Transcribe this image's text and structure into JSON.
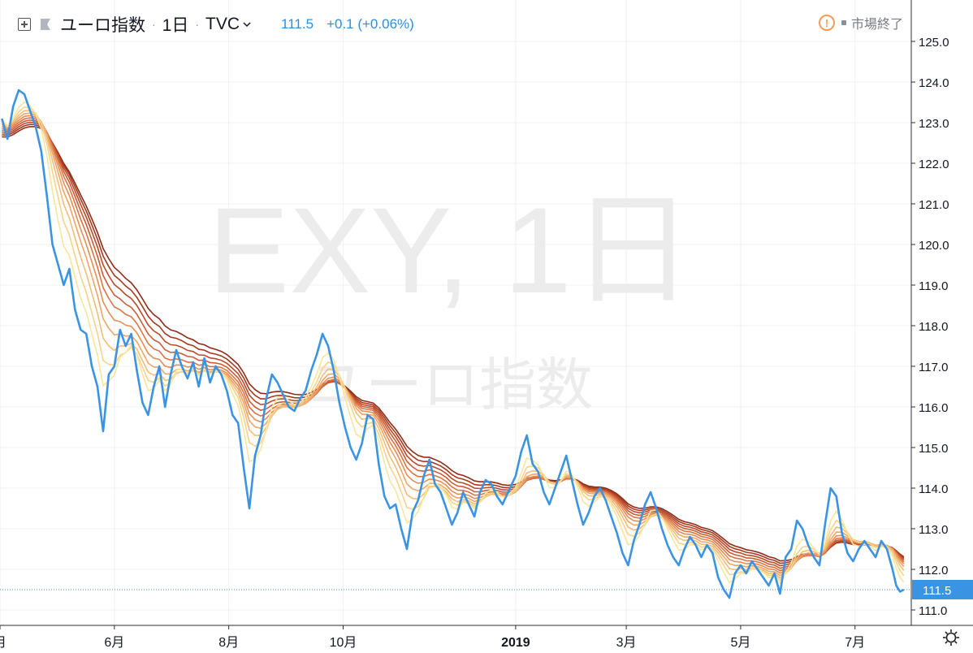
{
  "header": {
    "symbol_name": "ユーロ指数",
    "separator": "·",
    "interval": "1日",
    "exchange": "TVC",
    "last_price": "111.5",
    "change": "+0.1 (+0.06%)",
    "market_status": "市場終了"
  },
  "watermark": {
    "line1": "EXY, 1日",
    "line2": "ユーロ指数"
  },
  "colors": {
    "price_line": "#3a93e3",
    "ribbon": [
      "#8e2c17",
      "#a43a1f",
      "#b94b2a",
      "#cc5c36",
      "#db7445",
      "#e68d55",
      "#eea567",
      "#f3bd78",
      "#f7d38a",
      "#fae59c"
    ],
    "accent": "#f49a55"
  },
  "chart_data": {
    "type": "line",
    "y_ticks": [
      "125.0",
      "124.0",
      "123.0",
      "122.0",
      "121.0",
      "120.0",
      "119.0",
      "118.0",
      "117.0",
      "116.0",
      "115.0",
      "114.0",
      "113.0",
      "112.0",
      "111.0"
    ],
    "ylim": [
      110.7,
      125.3
    ],
    "x_ticks": [
      {
        "label": "月",
        "date": "2018-04-01",
        "bold": false
      },
      {
        "label": "6月",
        "date": "2018-06-01",
        "bold": false
      },
      {
        "label": "8月",
        "date": "2018-08-01",
        "bold": false
      },
      {
        "label": "10月",
        "date": "2018-10-01",
        "bold": false
      },
      {
        "label": "2019",
        "date": "2019-01-01",
        "bold": true
      },
      {
        "label": "3月",
        "date": "2019-03-01",
        "bold": false
      },
      {
        "label": "5月",
        "date": "2019-05-01",
        "bold": false
      },
      {
        "label": "7月",
        "date": "2019-07-01",
        "bold": false
      }
    ],
    "xlim": [
      "2018-04-01",
      "2019-07-31"
    ],
    "last_value_label": "111.5",
    "series": [
      {
        "values": [
          [
            "2018-04-02",
            123.1
          ],
          [
            "2018-04-05",
            122.6
          ],
          [
            "2018-04-08",
            123.4
          ],
          [
            "2018-04-11",
            123.8
          ],
          [
            "2018-04-14",
            123.7
          ],
          [
            "2018-04-17",
            123.3
          ],
          [
            "2018-04-20",
            122.9
          ],
          [
            "2018-04-23",
            122.3
          ],
          [
            "2018-04-26",
            121.2
          ],
          [
            "2018-04-29",
            120.0
          ],
          [
            "2018-05-02",
            119.5
          ],
          [
            "2018-05-05",
            119.0
          ],
          [
            "2018-05-08",
            119.4
          ],
          [
            "2018-05-11",
            118.4
          ],
          [
            "2018-05-14",
            117.9
          ],
          [
            "2018-05-17",
            117.8
          ],
          [
            "2018-05-20",
            117.0
          ],
          [
            "2018-05-23",
            116.5
          ],
          [
            "2018-05-26",
            115.4
          ],
          [
            "2018-05-29",
            116.8
          ],
          [
            "2018-06-01",
            117.0
          ],
          [
            "2018-06-04",
            117.9
          ],
          [
            "2018-06-07",
            117.5
          ],
          [
            "2018-06-10",
            117.8
          ],
          [
            "2018-06-13",
            116.9
          ],
          [
            "2018-06-16",
            116.1
          ],
          [
            "2018-06-19",
            115.8
          ],
          [
            "2018-06-22",
            116.5
          ],
          [
            "2018-06-25",
            117.0
          ],
          [
            "2018-06-28",
            116.0
          ],
          [
            "2018-07-01",
            116.8
          ],
          [
            "2018-07-04",
            117.4
          ],
          [
            "2018-07-07",
            117.0
          ],
          [
            "2018-07-10",
            116.7
          ],
          [
            "2018-07-13",
            117.1
          ],
          [
            "2018-07-16",
            116.5
          ],
          [
            "2018-07-19",
            117.2
          ],
          [
            "2018-07-22",
            116.6
          ],
          [
            "2018-07-25",
            117.0
          ],
          [
            "2018-07-28",
            116.8
          ],
          [
            "2018-07-31",
            116.4
          ],
          [
            "2018-08-03",
            115.8
          ],
          [
            "2018-08-06",
            115.6
          ],
          [
            "2018-08-09",
            114.5
          ],
          [
            "2018-08-12",
            113.5
          ],
          [
            "2018-08-15",
            114.8
          ],
          [
            "2018-08-18",
            115.3
          ],
          [
            "2018-08-21",
            116.2
          ],
          [
            "2018-08-24",
            116.8
          ],
          [
            "2018-08-27",
            116.6
          ],
          [
            "2018-08-30",
            116.3
          ],
          [
            "2018-09-02",
            116.0
          ],
          [
            "2018-09-05",
            115.9
          ],
          [
            "2018-09-08",
            116.2
          ],
          [
            "2018-09-11",
            116.4
          ],
          [
            "2018-09-14",
            116.9
          ],
          [
            "2018-09-17",
            117.3
          ],
          [
            "2018-09-20",
            117.8
          ],
          [
            "2018-09-23",
            117.5
          ],
          [
            "2018-09-26",
            116.9
          ],
          [
            "2018-09-29",
            116.1
          ],
          [
            "2018-10-02",
            115.5
          ],
          [
            "2018-10-05",
            115.0
          ],
          [
            "2018-10-08",
            114.7
          ],
          [
            "2018-10-11",
            115.1
          ],
          [
            "2018-10-14",
            115.8
          ],
          [
            "2018-10-17",
            115.7
          ],
          [
            "2018-10-20",
            114.6
          ],
          [
            "2018-10-23",
            113.8
          ],
          [
            "2018-10-26",
            113.5
          ],
          [
            "2018-10-29",
            113.6
          ],
          [
            "2018-11-01",
            113.0
          ],
          [
            "2018-11-04",
            112.5
          ],
          [
            "2018-11-07",
            113.4
          ],
          [
            "2018-11-10",
            113.7
          ],
          [
            "2018-11-13",
            114.3
          ],
          [
            "2018-11-16",
            114.7
          ],
          [
            "2018-11-19",
            114.1
          ],
          [
            "2018-11-22",
            113.9
          ],
          [
            "2018-11-25",
            113.5
          ],
          [
            "2018-11-28",
            113.1
          ],
          [
            "2018-12-01",
            113.4
          ],
          [
            "2018-12-04",
            113.9
          ],
          [
            "2018-12-07",
            113.6
          ],
          [
            "2018-12-10",
            113.3
          ],
          [
            "2018-12-13",
            113.9
          ],
          [
            "2018-12-16",
            114.2
          ],
          [
            "2018-12-19",
            114.1
          ],
          [
            "2018-12-22",
            113.8
          ],
          [
            "2018-12-25",
            113.6
          ],
          [
            "2018-12-28",
            113.9
          ],
          [
            "2019-01-01",
            114.3
          ],
          [
            "2019-01-04",
            114.9
          ],
          [
            "2019-01-07",
            115.3
          ],
          [
            "2019-01-10",
            114.6
          ],
          [
            "2019-01-13",
            114.4
          ],
          [
            "2019-01-16",
            113.9
          ],
          [
            "2019-01-19",
            113.6
          ],
          [
            "2019-01-22",
            114.0
          ],
          [
            "2019-01-25",
            114.4
          ],
          [
            "2019-01-28",
            114.8
          ],
          [
            "2019-01-31",
            114.2
          ],
          [
            "2019-02-03",
            113.6
          ],
          [
            "2019-02-06",
            113.1
          ],
          [
            "2019-02-09",
            113.4
          ],
          [
            "2019-02-12",
            113.8
          ],
          [
            "2019-02-15",
            114.0
          ],
          [
            "2019-02-18",
            113.7
          ],
          [
            "2019-02-21",
            113.3
          ],
          [
            "2019-02-24",
            112.9
          ],
          [
            "2019-02-27",
            112.4
          ],
          [
            "2019-03-02",
            112.1
          ],
          [
            "2019-03-05",
            112.7
          ],
          [
            "2019-03-08",
            113.1
          ],
          [
            "2019-03-11",
            113.6
          ],
          [
            "2019-03-14",
            113.9
          ],
          [
            "2019-03-17",
            113.5
          ],
          [
            "2019-03-20",
            113.0
          ],
          [
            "2019-03-23",
            112.6
          ],
          [
            "2019-03-26",
            112.3
          ],
          [
            "2019-03-29",
            112.1
          ],
          [
            "2019-04-01",
            112.5
          ],
          [
            "2019-04-04",
            112.8
          ],
          [
            "2019-04-07",
            112.6
          ],
          [
            "2019-04-10",
            112.3
          ],
          [
            "2019-04-13",
            112.6
          ],
          [
            "2019-04-16",
            112.4
          ],
          [
            "2019-04-19",
            111.8
          ],
          [
            "2019-04-22",
            111.5
          ],
          [
            "2019-04-25",
            111.3
          ],
          [
            "2019-04-28",
            111.9
          ],
          [
            "2019-05-01",
            112.1
          ],
          [
            "2019-05-04",
            111.9
          ],
          [
            "2019-05-07",
            112.2
          ],
          [
            "2019-05-10",
            112.0
          ],
          [
            "2019-05-13",
            111.8
          ],
          [
            "2019-05-16",
            111.6
          ],
          [
            "2019-05-19",
            111.9
          ],
          [
            "2019-05-22",
            111.4
          ],
          [
            "2019-05-25",
            112.3
          ],
          [
            "2019-05-28",
            112.5
          ],
          [
            "2019-05-31",
            113.2
          ],
          [
            "2019-06-03",
            113.0
          ],
          [
            "2019-06-06",
            112.6
          ],
          [
            "2019-06-09",
            112.3
          ],
          [
            "2019-06-12",
            112.1
          ],
          [
            "2019-06-15",
            113.1
          ],
          [
            "2019-06-18",
            114.0
          ],
          [
            "2019-06-21",
            113.8
          ],
          [
            "2019-06-24",
            112.9
          ],
          [
            "2019-06-27",
            112.4
          ],
          [
            "2019-06-30",
            112.2
          ],
          [
            "2019-07-03",
            112.5
          ],
          [
            "2019-07-06",
            112.7
          ],
          [
            "2019-07-09",
            112.5
          ],
          [
            "2019-07-12",
            112.3
          ],
          [
            "2019-07-15",
            112.7
          ],
          [
            "2019-07-18",
            112.5
          ],
          [
            "2019-07-21",
            112.0
          ],
          [
            "2019-07-23",
            111.6
          ],
          [
            "2019-07-25",
            111.45
          ],
          [
            "2019-07-27",
            111.5
          ]
        ]
      }
    ]
  }
}
